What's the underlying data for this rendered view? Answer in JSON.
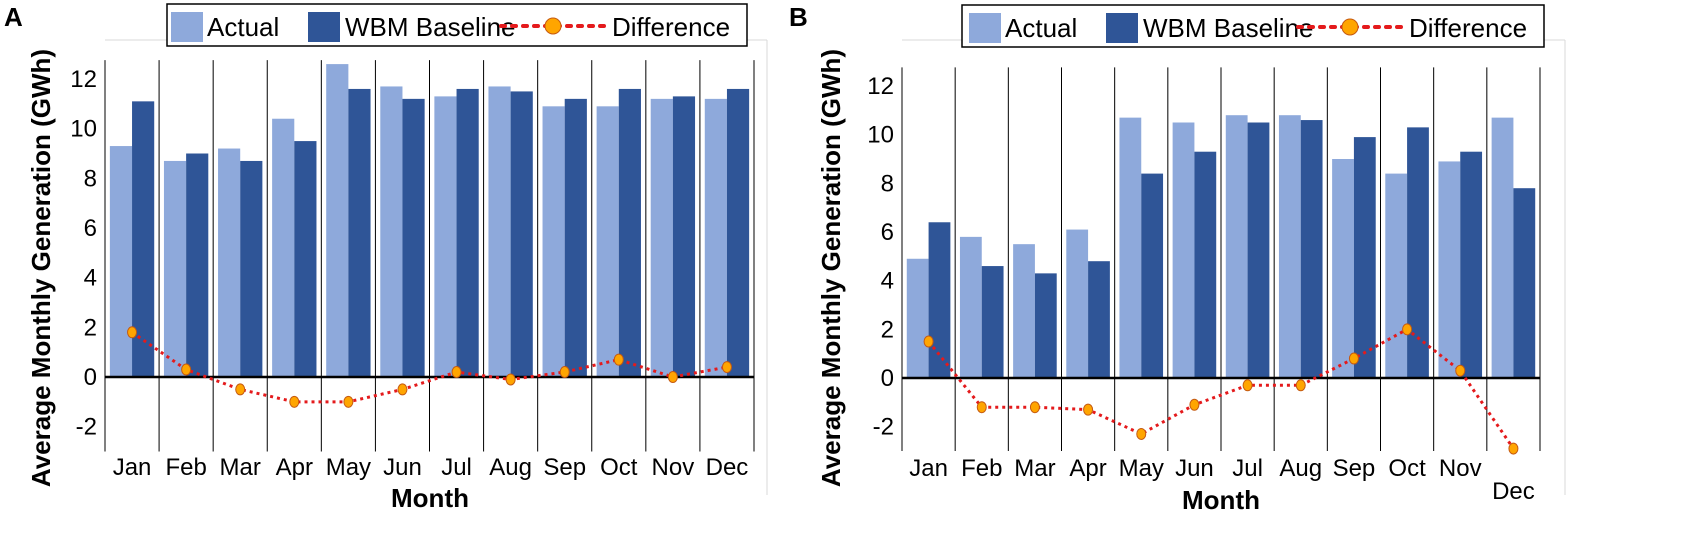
{
  "chart_data": [
    {
      "panel": "A",
      "type": "bar",
      "categories": [
        "Jan",
        "Feb",
        "Mar",
        "Apr",
        "May",
        "Jun",
        "Jul",
        "Aug",
        "Sep",
        "Oct",
        "Nov",
        "Dec"
      ],
      "series": [
        {
          "name": "Actual",
          "kind": "bar",
          "color": "#8EA9DB",
          "values": [
            9.3,
            8.7,
            9.2,
            10.4,
            12.6,
            11.7,
            11.3,
            11.7,
            10.9,
            10.9,
            11.2,
            11.2
          ]
        },
        {
          "name": "WBM Baseline",
          "kind": "bar",
          "color": "#2F5597",
          "values": [
            11.1,
            9.0,
            8.7,
            9.5,
            11.6,
            11.2,
            11.6,
            11.5,
            11.2,
            11.6,
            11.3,
            11.6
          ]
        },
        {
          "name": "Difference",
          "kind": "line",
          "color": "#E41A1C",
          "marker_color": "#FFA500",
          "values": [
            1.8,
            0.3,
            -0.5,
            -1.0,
            -1.0,
            -0.5,
            0.2,
            -0.1,
            0.2,
            0.7,
            0.0,
            0.4
          ]
        }
      ],
      "ylim": [
        -3,
        13
      ],
      "yticks": [
        -2,
        0,
        2,
        4,
        6,
        8,
        10,
        12
      ],
      "xlabel": "Month",
      "ylabel": "Average Monthly Generation (GWh)"
    },
    {
      "panel": "B",
      "type": "bar",
      "categories": [
        "Jan",
        "Feb",
        "Mar",
        "Apr",
        "May",
        "Jun",
        "Jul",
        "Aug",
        "Sep",
        "Oct",
        "Nov",
        "Dec"
      ],
      "series": [
        {
          "name": "Actual",
          "kind": "bar",
          "color": "#8EA9DB",
          "values": [
            4.9,
            5.8,
            5.5,
            6.1,
            10.7,
            10.5,
            10.8,
            10.8,
            9.0,
            8.4,
            8.9,
            10.7
          ]
        },
        {
          "name": "WBM Baseline",
          "kind": "bar",
          "color": "#2F5597",
          "values": [
            6.4,
            4.6,
            4.3,
            4.8,
            8.4,
            9.3,
            10.5,
            10.6,
            9.9,
            10.3,
            9.3,
            7.8
          ]
        },
        {
          "name": "Difference",
          "kind": "line",
          "color": "#E41A1C",
          "marker_color": "#FFA500",
          "values": [
            1.5,
            -1.2,
            -1.2,
            -1.3,
            -2.3,
            -1.1,
            -0.3,
            -0.3,
            0.8,
            2.0,
            0.3,
            -2.9
          ]
        }
      ],
      "ylim": [
        -3,
        13
      ],
      "yticks": [
        -2,
        0,
        2,
        4,
        6,
        8,
        10,
        12
      ],
      "xlabel": "Month",
      "ylabel": "Average Monthly Generation (GWh)"
    }
  ]
}
